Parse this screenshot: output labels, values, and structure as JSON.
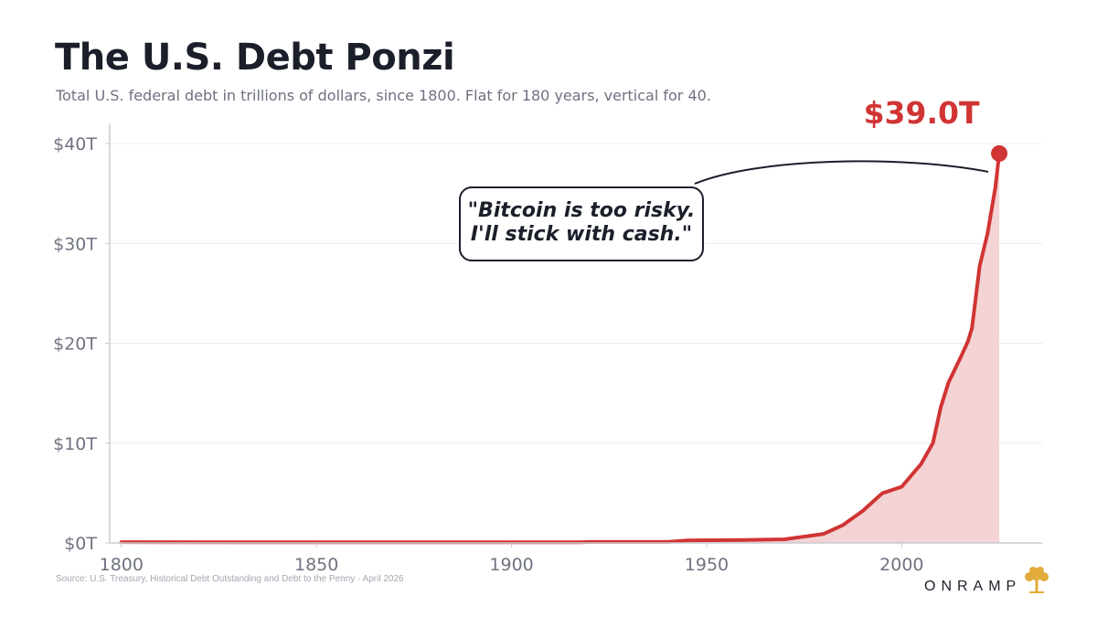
{
  "header": {
    "title": "The U.S. Debt Ponzi",
    "subtitle": "Total U.S. federal debt in trillions of dollars, since 1800. Flat for 180 years, vertical for 40."
  },
  "footer": {
    "source": "Source: U.S. Treasury, Historical Debt Outstanding and Debt to the Penny · April 2026",
    "brand": "ONRAMP",
    "brand_icon": "tree-icon"
  },
  "colors": {
    "line": "#d13434",
    "fill": "#f3d3d3",
    "text": "#1b1f2a",
    "muted": "#6d7280",
    "grid": "#ececec",
    "logo": "#e3ab3c"
  },
  "chart_data": {
    "type": "area",
    "title": "The U.S. Debt Ponzi",
    "xlabel": "",
    "ylabel": "",
    "xlim": [
      1797,
      2036
    ],
    "ylim": [
      0,
      40
    ],
    "x_ticks": [
      1800,
      1850,
      1900,
      1950,
      2000
    ],
    "y_ticks": [
      {
        "value": 0,
        "label": "$0T"
      },
      {
        "value": 10,
        "label": "$10T"
      },
      {
        "value": 20,
        "label": "$20T"
      },
      {
        "value": 30,
        "label": "$30T"
      },
      {
        "value": 40,
        "label": "$40T"
      }
    ],
    "grid": true,
    "legend": "none",
    "series": [
      {
        "points": [
          [
            1800,
            0.08
          ],
          [
            1860,
            0.06
          ],
          [
            1900,
            0.06
          ],
          [
            1917,
            0.06
          ],
          [
            1920,
            0.1
          ],
          [
            1940,
            0.1
          ],
          [
            1945,
            0.26
          ],
          [
            1960,
            0.29
          ],
          [
            1970,
            0.37
          ],
          [
            1980,
            0.91
          ],
          [
            1985,
            1.8
          ],
          [
            1990,
            3.2
          ],
          [
            1995,
            4.97
          ],
          [
            2000,
            5.63
          ],
          [
            2005,
            7.93
          ],
          [
            2008,
            10.0
          ],
          [
            2010,
            13.56
          ],
          [
            2012,
            16.07
          ],
          [
            2015,
            18.5
          ],
          [
            2017,
            20.2
          ],
          [
            2018,
            21.5
          ],
          [
            2020,
            27.75
          ],
          [
            2022,
            31.0
          ],
          [
            2024,
            35.6
          ],
          [
            2025,
            39.0
          ]
        ]
      }
    ],
    "annotations": [
      {
        "type": "value_label",
        "text": "$39.0T",
        "x": 2025,
        "y": 39.0
      },
      {
        "type": "callout",
        "text_lines": [
          "\"Bitcoin is too risky.",
          "I'll stick with cash.\""
        ]
      }
    ]
  }
}
